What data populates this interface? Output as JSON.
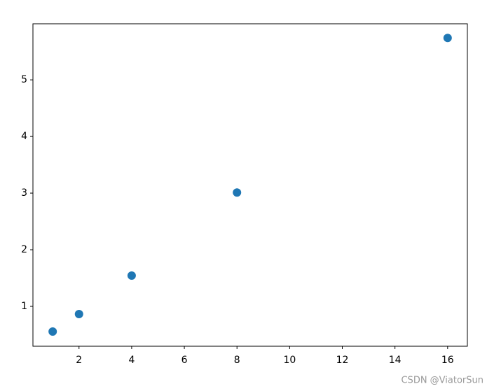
{
  "chart_data": {
    "type": "scatter",
    "x": [
      1,
      2,
      4,
      8,
      16
    ],
    "values": [
      0.556,
      0.864,
      1.543,
      3.01,
      5.74
    ],
    "color": "#1f77b4",
    "xlim": [
      0.25,
      16.75
    ],
    "xticks": [
      2,
      4,
      6,
      8,
      10,
      12,
      14,
      16
    ],
    "ylim": [
      0.296,
      5.99
    ],
    "yticks": [
      1,
      2,
      3,
      4,
      5
    ],
    "grid": false
  },
  "watermark": "CSDN @ViatorSun"
}
